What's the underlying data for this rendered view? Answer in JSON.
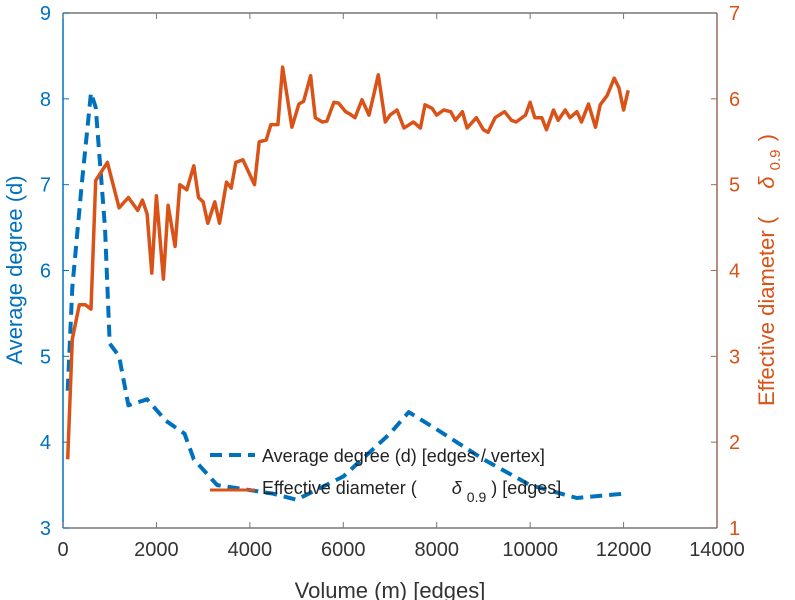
{
  "chart_data": {
    "type": "line",
    "title": "",
    "xlabel": "Volume (m) [edges]",
    "ylabel_left": "Average degree (d)",
    "ylabel_right_prefix": "Effective diameter (",
    "ylabel_right_symbol": "δ",
    "ylabel_right_sub": "0.9",
    "ylabel_right_suffix": ")",
    "xlim": [
      0,
      14000
    ],
    "ylim_left": [
      3,
      9
    ],
    "ylim_right": [
      1,
      7
    ],
    "xticks": [
      "0",
      "2000",
      "4000",
      "6000",
      "8000",
      "10000",
      "12000",
      "14000"
    ],
    "yticks_left": [
      "3",
      "4",
      "5",
      "6",
      "7",
      "8",
      "9"
    ],
    "yticks_right": [
      "1",
      "2",
      "3",
      "4",
      "5",
      "6",
      "7"
    ],
    "grid": false,
    "legend_position": "bottom-center",
    "colors": {
      "left": "#0072BD",
      "right": "#D95319",
      "axis": "#555555"
    },
    "series": [
      {
        "name": "Average degree (d) [edges / vertex]",
        "axis": "left",
        "style": "dashed",
        "x": [
          100,
          200,
          400,
          600,
          700,
          900,
          1000,
          1200,
          1400,
          1800,
          2200,
          2600,
          2800,
          3300,
          4500,
          5000,
          6000,
          7000,
          7400,
          8000,
          9000,
          10000,
          11000,
          12000
        ],
        "y": [
          4.6,
          5.8,
          7.0,
          8.07,
          7.9,
          6.5,
          5.15,
          5.0,
          4.43,
          4.5,
          4.25,
          4.1,
          3.8,
          3.5,
          3.4,
          3.33,
          3.6,
          4.1,
          4.35,
          4.15,
          3.8,
          3.5,
          3.35,
          3.4
        ]
      },
      {
        "name_prefix": "Effective diameter (",
        "name_symbol": "δ",
        "name_sub": "0.9",
        "name_suffix": ") [edges]",
        "axis": "right",
        "style": "solid",
        "x": [
          100,
          200,
          350,
          480,
          600,
          700,
          950,
          1200,
          1400,
          1600,
          1700,
          1800,
          1900,
          2000,
          2150,
          2250,
          2400,
          2500,
          2650,
          2800,
          2900,
          3000,
          3100,
          3250,
          3350,
          3500,
          3600,
          3700,
          3850,
          4100,
          4200,
          4350,
          4450,
          4600,
          4700,
          4900,
          5050,
          5150,
          5300,
          5400,
          5550,
          5650,
          5800,
          5900,
          6050,
          6150,
          6250,
          6400,
          6550,
          6650,
          6750,
          6900,
          7000,
          7150,
          7300,
          7500,
          7650,
          7750,
          7900,
          8000,
          8150,
          8300,
          8400,
          8550,
          8650,
          8850,
          9000,
          9100,
          9250,
          9450,
          9600,
          9700,
          9900,
          10000,
          10100,
          10250,
          10350,
          10500,
          10600,
          10750,
          10850,
          11000,
          11100,
          11250,
          11400,
          11500,
          11650,
          11800,
          11900,
          12000,
          12100
        ],
        "y": [
          1.8,
          3.2,
          3.6,
          3.6,
          3.55,
          5.05,
          5.26,
          4.73,
          4.85,
          4.7,
          4.82,
          4.66,
          3.97,
          4.87,
          3.9,
          4.76,
          4.28,
          5.0,
          4.94,
          5.22,
          4.85,
          4.8,
          4.55,
          4.8,
          4.55,
          5.03,
          4.96,
          5.26,
          5.29,
          5.0,
          5.5,
          5.52,
          5.7,
          5.7,
          6.37,
          5.67,
          5.94,
          5.97,
          6.27,
          5.78,
          5.73,
          5.74,
          5.96,
          5.95,
          5.85,
          5.82,
          5.78,
          5.99,
          5.81,
          6.04,
          6.28,
          5.73,
          5.81,
          5.87,
          5.66,
          5.73,
          5.66,
          5.93,
          5.89,
          5.81,
          5.87,
          5.85,
          5.75,
          5.85,
          5.66,
          5.78,
          5.64,
          5.61,
          5.78,
          5.85,
          5.75,
          5.73,
          5.81,
          5.96,
          5.78,
          5.78,
          5.64,
          5.87,
          5.75,
          5.87,
          5.78,
          5.85,
          5.73,
          5.94,
          5.67,
          5.93,
          6.04,
          6.24,
          6.13,
          5.87,
          6.1
        ]
      }
    ]
  }
}
